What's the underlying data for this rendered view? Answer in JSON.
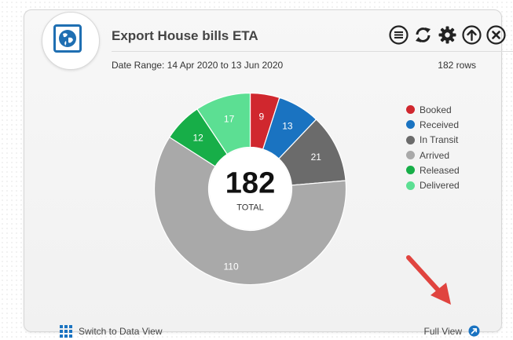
{
  "widget": {
    "title": "Export House bills ETA",
    "date_range": "Date Range: 14 Apr 2020 to 13 Jun 2020",
    "row_count": "182 rows",
    "toolbar": [
      "menu-icon",
      "refresh-icon",
      "gear-icon",
      "upload-icon",
      "close-icon"
    ]
  },
  "chart_data": {
    "type": "pie",
    "center_value": "182",
    "center_label": "TOTAL",
    "labels": [
      "Booked",
      "Received",
      "In Transit",
      "Arrived",
      "Released",
      "Delivered"
    ],
    "values": [
      9,
      13,
      21,
      110,
      12,
      17
    ],
    "colors": [
      "#d0272e",
      "#1a73c1",
      "#6b6b6b",
      "#a9a9a9",
      "#17ae48",
      "#5cdf93"
    ],
    "legend_position": "top-right"
  },
  "footer": {
    "switch_label": "Switch to Data View",
    "full_view_label": "Full View"
  },
  "colors": {
    "accent": "#1f6fb2",
    "annotation_arrow": "#e0443f"
  }
}
